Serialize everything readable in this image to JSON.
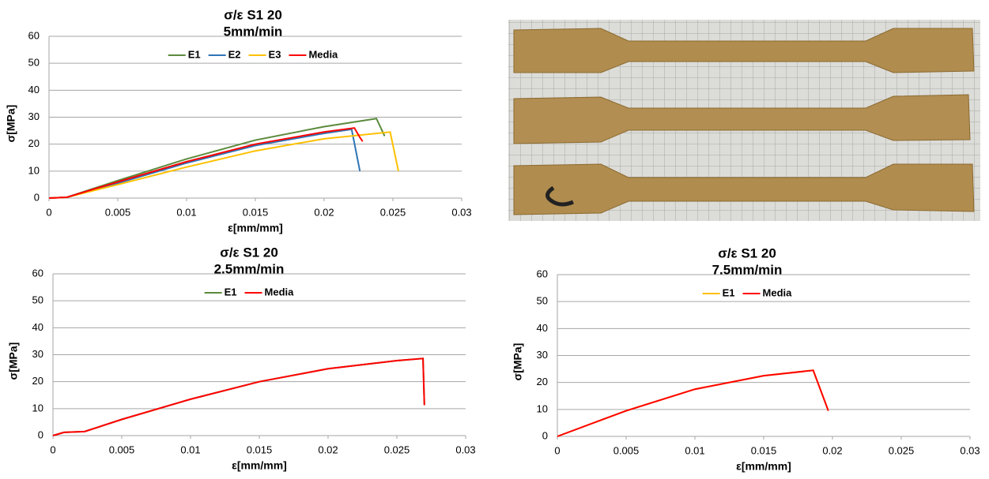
{
  "chart_data": [
    {
      "type": "line",
      "title": "σ/ε S1 20",
      "subtitle": "5mm/min",
      "x_label": "ε[mm/mm]",
      "y_label": "σ[MPa]",
      "xlim": [
        0,
        0.03
      ],
      "xticks": [
        0,
        0.005,
        0.01,
        0.015,
        0.02,
        0.025,
        0.03
      ],
      "ylim": [
        0,
        60
      ],
      "yticks": [
        0,
        10,
        20,
        30,
        40,
        50,
        60
      ],
      "grid": true,
      "legend": "top",
      "series": [
        {
          "name": "E1",
          "color": "#5b8a3c",
          "x": [
            0,
            0.0013,
            0.005,
            0.01,
            0.015,
            0.02,
            0.0238,
            0.0244
          ],
          "values": [
            0,
            0.3,
            6.5,
            14.5,
            21.5,
            26.5,
            29.5,
            23
          ]
        },
        {
          "name": "E2",
          "color": "#2e75b6",
          "x": [
            0,
            0.0013,
            0.005,
            0.01,
            0.015,
            0.02,
            0.022,
            0.0226
          ],
          "values": [
            0,
            0.3,
            5.5,
            13,
            19.5,
            24,
            25.5,
            10
          ]
        },
        {
          "name": "E3",
          "color": "#ffc000",
          "x": [
            0,
            0.0013,
            0.005,
            0.01,
            0.015,
            0.02,
            0.0248,
            0.0254
          ],
          "values": [
            0,
            0.3,
            5,
            11.5,
            17.5,
            22,
            24.5,
            10
          ]
        },
        {
          "name": "Media",
          "color": "#ff0000",
          "x": [
            0,
            0.0013,
            0.005,
            0.01,
            0.015,
            0.02,
            0.0222,
            0.0226,
            0.0228
          ],
          "values": [
            0,
            0.3,
            6,
            13.5,
            20,
            24.5,
            26,
            22.5,
            21
          ]
        }
      ]
    },
    {
      "type": "line",
      "title": "σ/ε S1 20",
      "subtitle": "2.5mm/min",
      "x_label": "ε[mm/mm]",
      "y_label": "σ[MPa]",
      "xlim": [
        0,
        0.03
      ],
      "xticks": [
        0,
        0.005,
        0.01,
        0.015,
        0.02,
        0.025,
        0.03
      ],
      "ylim": [
        0,
        60
      ],
      "yticks": [
        0,
        10,
        20,
        30,
        40,
        50,
        60
      ],
      "grid": true,
      "legend": "top",
      "series": [
        {
          "name": "E1",
          "color": "#5b8a3c",
          "x": [
            0,
            0.0008,
            0.0023,
            0.005,
            0.01,
            0.015,
            0.02,
            0.025,
            0.0269,
            0.027
          ],
          "values": [
            0,
            1.2,
            1.5,
            6,
            13.5,
            20,
            24.8,
            27.8,
            28.6,
            11.3
          ]
        },
        {
          "name": "Media",
          "color": "#ff0000",
          "x": [
            0,
            0.0008,
            0.0023,
            0.005,
            0.01,
            0.015,
            0.02,
            0.025,
            0.0269,
            0.027
          ],
          "values": [
            0,
            1.2,
            1.5,
            6,
            13.5,
            20,
            24.8,
            27.8,
            28.6,
            11.3
          ]
        }
      ]
    },
    {
      "type": "line",
      "title": "σ/ε S1 20",
      "subtitle": "7.5mm/min",
      "x_label": "ε[mm/mm]",
      "y_label": "σ[MPa]",
      "xlim": [
        0,
        0.03
      ],
      "xticks": [
        0,
        0.005,
        0.01,
        0.015,
        0.02,
        0.025,
        0.03
      ],
      "ylim": [
        0,
        60
      ],
      "yticks": [
        0,
        10,
        20,
        30,
        40,
        50,
        60
      ],
      "grid": true,
      "legend": "top",
      "series": [
        {
          "name": "E1",
          "color": "#ffc000",
          "x": [
            0,
            0.005,
            0.01,
            0.015,
            0.0186,
            0.0197
          ],
          "values": [
            0,
            9.5,
            17.5,
            22.5,
            24.5,
            9.5
          ]
        },
        {
          "name": "Media",
          "color": "#ff0000",
          "x": [
            0,
            0.005,
            0.01,
            0.015,
            0.0186,
            0.0197
          ],
          "values": [
            0,
            9.5,
            17.5,
            22.5,
            24.5,
            9.5
          ]
        }
      ]
    }
  ]
}
